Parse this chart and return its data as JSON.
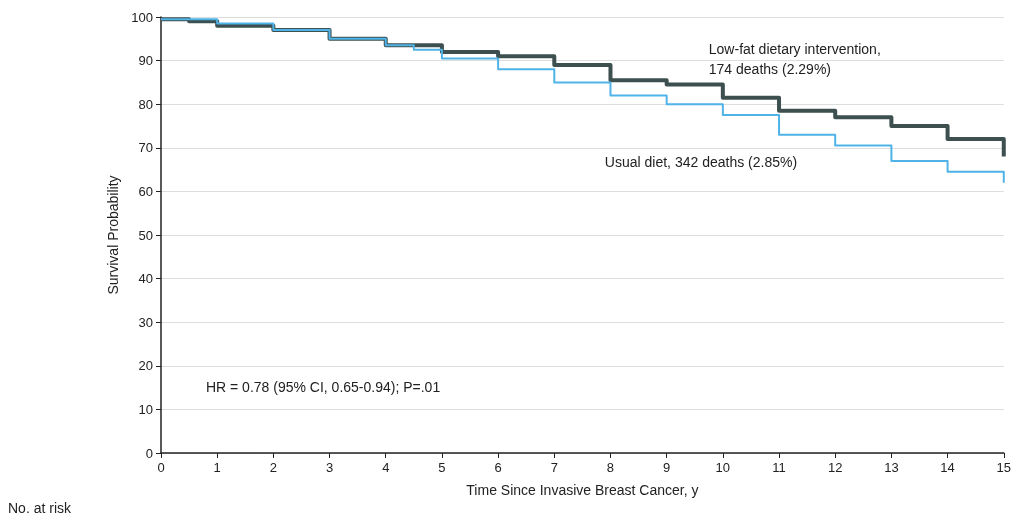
{
  "chart_data": {
    "type": "step",
    "xlabel": "Time Since Invasive Breast Cancer, y",
    "ylabel": "Survival Probability",
    "xlim": [
      0,
      15
    ],
    "xticks": [
      0,
      1,
      2,
      3,
      4,
      5,
      6,
      7,
      8,
      9,
      10,
      11,
      12,
      13,
      14,
      15
    ],
    "ylim": [
      0,
      100
    ],
    "yticks": [
      0,
      10,
      20,
      30,
      40,
      50,
      60,
      70,
      80,
      90,
      100
    ],
    "grid": "y",
    "marker": "none",
    "line_style": "solid",
    "series": [
      {
        "color": "#3d4f4f",
        "x": [
          0,
          0.5,
          1,
          2,
          3,
          4,
          5,
          6,
          7,
          8,
          9,
          10,
          11,
          12,
          13,
          14,
          15
        ],
        "values": [
          99.5,
          99,
          98,
          97,
          95,
          93.5,
          92,
          91,
          89,
          85.5,
          84.5,
          81.5,
          78.5,
          77,
          75,
          72,
          68
        ]
      },
      {
        "color": "#4fb3e8",
        "x": [
          0,
          1,
          2,
          3,
          4,
          4.5,
          5,
          6,
          7,
          8,
          9,
          10,
          11,
          12,
          13,
          14,
          15
        ],
        "values": [
          99.5,
          98.5,
          97,
          95,
          93.5,
          92.5,
          90.5,
          88,
          85,
          82,
          80,
          77.5,
          73,
          70.5,
          67,
          64.5,
          62
        ]
      }
    ],
    "annotations": [
      "Low-fat dietary intervention,\n174 deaths (2.29%)",
      "Usual diet, 342 deaths (2.85%)",
      "HR = 0.78 (95% CI, 0.65-0.94); P=.01",
      "No. at risk"
    ]
  }
}
